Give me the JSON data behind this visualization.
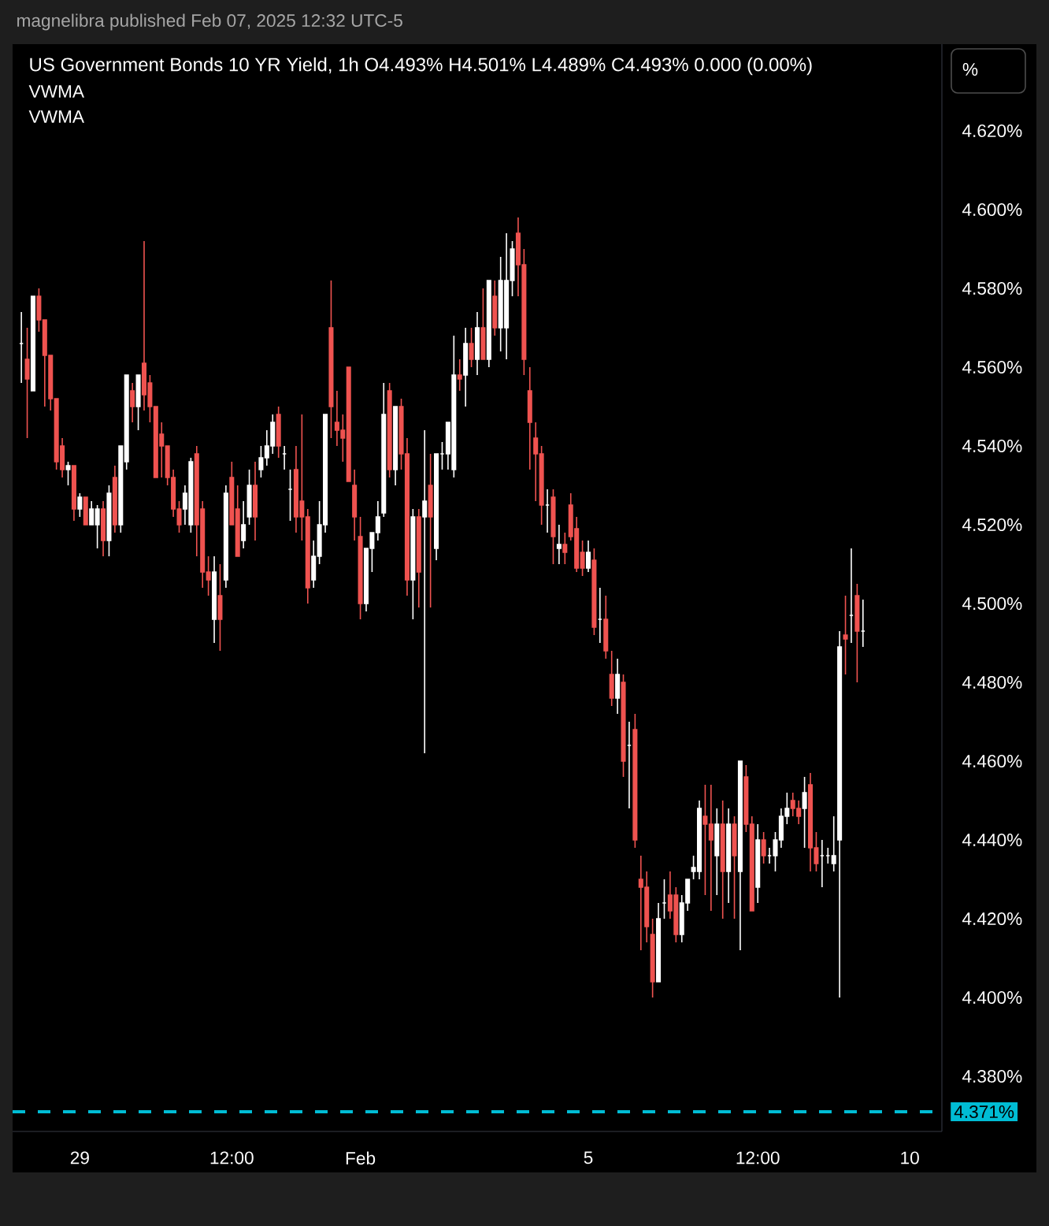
{
  "chart_data": {
    "type": "candlestick",
    "title": "US Government Bonds 10 YR Yield, 1h  O4.493%  H4.501%  L4.489%  C4.493%  0.000 (0.00%)",
    "annotations": [
      "magnelibra published Feb 07, 2025 12:32 UTC-5",
      "VWMA",
      "VWMA",
      "%"
    ],
    "categories": [
      null,
      null,
      null,
      null,
      null,
      null,
      null,
      null,
      null,
      null,
      "29",
      null,
      null,
      null,
      null,
      null,
      null,
      null,
      null,
      null,
      null,
      null,
      null,
      null,
      null,
      null,
      null,
      null,
      null,
      null,
      null,
      null,
      null,
      null,
      null,
      null,
      "12:00",
      null,
      null,
      null,
      null,
      null,
      null,
      null,
      null,
      null,
      null,
      null,
      null,
      null,
      null,
      null,
      null,
      null,
      null,
      null,
      null,
      null,
      "Feb",
      null,
      null,
      null,
      null,
      null,
      null,
      null,
      null,
      null,
      null,
      null,
      null,
      null,
      null,
      null,
      null,
      null,
      null,
      null,
      null,
      null,
      null,
      null,
      null,
      null,
      null,
      null,
      null,
      null,
      null,
      null,
      null,
      null,
      null,
      null,
      null,
      null,
      null,
      "5",
      null,
      null,
      null,
      null,
      null,
      null,
      null,
      null,
      null,
      null,
      null,
      null,
      null,
      null,
      null,
      null,
      null,
      null,
      null,
      null,
      null,
      null,
      null,
      null,
      null,
      null,
      null,
      null,
      "12:00",
      null,
      null,
      null,
      null,
      null,
      null,
      null,
      null,
      null,
      null,
      null,
      null,
      null,
      null,
      null,
      null,
      null,
      null,
      null,
      null,
      null,
      null,
      null,
      null,
      null,
      "10"
    ],
    "ohlc": [
      [
        4.566,
        4.574,
        4.556,
        4.566
      ],
      [
        4.562,
        4.57,
        4.542,
        4.557
      ],
      [
        4.554,
        4.578,
        4.554,
        4.578
      ],
      [
        4.578,
        4.58,
        4.569,
        4.572
      ],
      [
        4.572,
        4.572,
        4.55,
        4.563
      ],
      [
        4.563,
        4.563,
        4.549,
        4.552
      ],
      [
        4.552,
        4.552,
        4.534,
        4.536
      ],
      [
        4.54,
        4.542,
        4.532,
        4.534
      ],
      [
        4.534,
        4.536,
        4.53,
        4.535
      ],
      [
        4.535,
        4.535,
        4.521,
        4.524
      ],
      [
        4.524,
        4.528,
        4.522,
        4.527
      ],
      [
        4.527,
        4.527,
        4.52,
        4.52
      ],
      [
        4.52,
        4.526,
        4.52,
        4.524
      ],
      [
        4.52,
        4.525,
        4.514,
        4.524
      ],
      [
        4.524,
        4.526,
        4.512,
        4.516
      ],
      [
        4.516,
        4.53,
        4.512,
        4.528
      ],
      [
        4.532,
        4.535,
        4.518,
        4.52
      ],
      [
        4.52,
        4.54,
        4.518,
        4.54
      ],
      [
        4.536,
        4.558,
        4.534,
        4.558
      ],
      [
        4.554,
        4.556,
        4.546,
        4.55
      ],
      [
        4.55,
        4.558,
        4.544,
        4.558
      ],
      [
        4.561,
        4.592,
        4.549,
        4.553
      ],
      [
        4.556,
        4.558,
        4.546,
        4.55
      ],
      [
        4.55,
        4.55,
        4.532,
        4.532
      ],
      [
        4.543,
        4.546,
        4.532,
        4.54
      ],
      [
        4.54,
        4.54,
        4.53,
        4.532
      ],
      [
        4.532,
        4.534,
        4.522,
        4.524
      ],
      [
        4.524,
        4.526,
        4.518,
        4.52
      ],
      [
        4.524,
        4.53,
        4.52,
        4.528
      ],
      [
        4.52,
        4.537,
        4.518,
        4.536
      ],
      [
        4.538,
        4.54,
        4.512,
        4.52
      ],
      [
        4.524,
        4.526,
        4.504,
        4.508
      ],
      [
        4.508,
        4.512,
        4.502,
        4.506
      ],
      [
        4.496,
        4.512,
        4.49,
        4.508
      ],
      [
        4.502,
        4.51,
        4.488,
        4.496
      ],
      [
        4.506,
        4.53,
        4.504,
        4.528
      ],
      [
        4.532,
        4.536,
        4.52,
        4.52
      ],
      [
        4.524,
        4.53,
        4.512,
        4.512
      ],
      [
        4.516,
        4.526,
        4.514,
        4.52
      ],
      [
        4.522,
        4.534,
        4.52,
        4.53
      ],
      [
        4.53,
        4.536,
        4.516,
        4.522
      ],
      [
        4.534,
        4.54,
        4.532,
        4.537
      ],
      [
        4.537,
        4.544,
        4.535,
        4.54
      ],
      [
        4.54,
        4.548,
        4.538,
        4.546
      ],
      [
        4.548,
        4.55,
        4.537,
        4.54
      ],
      [
        4.538,
        4.54,
        4.534,
        4.538
      ],
      [
        4.529,
        4.534,
        4.521,
        4.529
      ],
      [
        4.534,
        4.54,
        4.518,
        4.522
      ],
      [
        4.526,
        4.548,
        4.516,
        4.522
      ],
      [
        4.522,
        4.524,
        4.5,
        4.504
      ],
      [
        4.506,
        4.516,
        4.504,
        4.512
      ],
      [
        4.512,
        4.526,
        4.51,
        4.52
      ],
      [
        4.52,
        4.548,
        4.518,
        4.548
      ],
      [
        4.57,
        4.582,
        4.542,
        4.55
      ],
      [
        4.546,
        4.554,
        4.54,
        4.544
      ],
      [
        4.544,
        4.548,
        4.536,
        4.542
      ],
      [
        4.56,
        4.56,
        4.531,
        4.531
      ],
      [
        4.53,
        4.534,
        4.516,
        4.522
      ],
      [
        4.517,
        4.522,
        4.496,
        4.5
      ],
      [
        4.5,
        4.514,
        4.498,
        4.514
      ],
      [
        4.514,
        4.518,
        4.508,
        4.518
      ],
      [
        4.518,
        4.526,
        4.516,
        4.522
      ],
      [
        4.523,
        4.556,
        4.522,
        4.548
      ],
      [
        4.554,
        4.556,
        4.532,
        4.534
      ],
      [
        4.534,
        4.55,
        4.53,
        4.55
      ],
      [
        4.55,
        4.552,
        4.534,
        4.538
      ],
      [
        4.538,
        4.542,
        4.502,
        4.506
      ],
      [
        4.506,
        4.524,
        4.496,
        4.522
      ],
      [
        4.522,
        4.524,
        4.499,
        4.508
      ],
      [
        4.522,
        4.544,
        4.462,
        4.526
      ],
      [
        4.53,
        4.538,
        4.499,
        4.522
      ],
      [
        4.514,
        4.538,
        4.511,
        4.538
      ],
      [
        4.538,
        4.541,
        4.534,
        4.538
      ],
      [
        4.538,
        4.546,
        4.534,
        4.546
      ],
      [
        4.534,
        4.568,
        4.532,
        4.558
      ],
      [
        4.558,
        4.562,
        4.554,
        4.557
      ],
      [
        4.558,
        4.57,
        4.55,
        4.566
      ],
      [
        4.566,
        4.57,
        4.56,
        4.562
      ],
      [
        4.562,
        4.574,
        4.558,
        4.57
      ],
      [
        4.57,
        4.58,
        4.562,
        4.562
      ],
      [
        4.562,
        4.582,
        4.56,
        4.582
      ],
      [
        4.578,
        4.582,
        4.568,
        4.57
      ],
      [
        4.57,
        4.588,
        4.564,
        4.582
      ],
      [
        4.57,
        4.594,
        4.562,
        4.582
      ],
      [
        4.582,
        4.592,
        4.578,
        4.59
      ],
      [
        4.594,
        4.598,
        4.578,
        4.586
      ],
      [
        4.586,
        4.59,
        4.558,
        4.562
      ],
      [
        4.554,
        4.56,
        4.534,
        4.546
      ],
      [
        4.542,
        4.546,
        4.526,
        4.538
      ],
      [
        4.538,
        4.54,
        4.52,
        4.525
      ],
      [
        4.525,
        4.529,
        4.518,
        4.525
      ],
      [
        4.527,
        4.529,
        4.51,
        4.517
      ],
      [
        4.514,
        4.52,
        4.51,
        4.515
      ],
      [
        4.515,
        4.518,
        4.51,
        4.513
      ],
      [
        4.525,
        4.528,
        4.516,
        4.517
      ],
      [
        4.519,
        4.522,
        4.508,
        4.509
      ],
      [
        4.513,
        4.516,
        4.507,
        4.509
      ],
      [
        4.509,
        4.516,
        4.508,
        4.513
      ],
      [
        4.511,
        4.514,
        4.492,
        4.494
      ],
      [
        4.496,
        4.504,
        4.49,
        4.496
      ],
      [
        4.496,
        4.502,
        4.486,
        4.488
      ],
      [
        4.482,
        4.488,
        4.474,
        4.476
      ],
      [
        4.476,
        4.486,
        4.472,
        4.482
      ],
      [
        4.48,
        4.482,
        4.456,
        4.46
      ],
      [
        4.464,
        4.47,
        4.448,
        4.464
      ],
      [
        4.468,
        4.472,
        4.438,
        4.44
      ],
      [
        4.43,
        4.436,
        4.412,
        4.428
      ],
      [
        4.428,
        4.432,
        4.414,
        4.418
      ],
      [
        4.416,
        4.42,
        4.4,
        4.404
      ],
      [
        4.404,
        4.424,
        4.404,
        4.42
      ],
      [
        4.424,
        4.43,
        4.42,
        4.424
      ],
      [
        4.426,
        4.432,
        4.42,
        4.422
      ],
      [
        4.426,
        4.428,
        4.414,
        4.416
      ],
      [
        4.416,
        4.426,
        4.414,
        4.424
      ],
      [
        4.424,
        4.43,
        4.422,
        4.43
      ],
      [
        4.432,
        4.436,
        4.43,
        4.433
      ],
      [
        4.432,
        4.45,
        4.43,
        4.448
      ],
      [
        4.446,
        4.454,
        4.426,
        4.444
      ],
      [
        4.444,
        4.454,
        4.422,
        4.44
      ],
      [
        4.436,
        4.448,
        4.426,
        4.444
      ],
      [
        4.444,
        4.45,
        4.42,
        4.432
      ],
      [
        4.432,
        4.448,
        4.424,
        4.444
      ],
      [
        4.444,
        4.446,
        4.42,
        4.436
      ],
      [
        4.432,
        4.46,
        4.412,
        4.46
      ],
      [
        4.456,
        4.459,
        4.442,
        4.444
      ],
      [
        4.444,
        4.446,
        4.422,
        4.422
      ],
      [
        4.428,
        4.444,
        4.424,
        4.44
      ],
      [
        4.44,
        4.442,
        4.434,
        4.436
      ],
      [
        4.436,
        4.438,
        4.434,
        4.436
      ],
      [
        4.436,
        4.442,
        4.432,
        4.44
      ],
      [
        4.44,
        4.448,
        4.438,
        4.446
      ],
      [
        4.446,
        4.452,
        4.444,
        4.448
      ],
      [
        4.45,
        4.452,
        4.446,
        4.448
      ],
      [
        4.448,
        4.45,
        4.444,
        4.446
      ],
      [
        4.448,
        4.456,
        4.438,
        4.452
      ],
      [
        4.454,
        4.457,
        4.432,
        4.438
      ],
      [
        4.438,
        4.442,
        4.432,
        4.434
      ],
      [
        4.436,
        4.44,
        4.428,
        4.436
      ],
      [
        4.436,
        4.438,
        4.434,
        4.436
      ],
      [
        4.434,
        4.446,
        4.432,
        4.436
      ],
      [
        4.44,
        4.493,
        4.4,
        4.489
      ],
      [
        4.492,
        4.502,
        4.482,
        4.491
      ],
      [
        4.497,
        4.514,
        4.49,
        4.497
      ],
      [
        4.502,
        4.505,
        4.48,
        4.493
      ],
      [
        4.493,
        4.501,
        4.489,
        4.493
      ],
      null,
      null,
      null,
      null,
      null,
      null,
      null,
      null
    ],
    "colors": [
      "#ffffff",
      "#ef5350",
      "#ffffff",
      "#ef5350",
      "#ef5350",
      "#ef5350",
      "#ef5350",
      "#ef5350",
      "#ffffff",
      "#ef5350",
      "#ffffff",
      "#ef5350",
      "#ffffff",
      "#ffffff",
      "#ef5350",
      "#ffffff",
      "#ef5350",
      "#ffffff",
      "#ffffff",
      "#ef5350",
      "#ffffff",
      "#ef5350",
      "#ef5350",
      "#ef5350",
      "#ef5350",
      "#ef5350",
      "#ef5350",
      "#ef5350",
      "#ffffff",
      "#ffffff",
      "#ef5350",
      "#ef5350",
      "#ef5350",
      "#ffffff",
      "#ef5350",
      "#ffffff",
      "#ef5350",
      "#ef5350",
      "#ffffff",
      "#ffffff",
      "#ef5350",
      "#ffffff",
      "#ffffff",
      "#ffffff",
      "#ef5350",
      "#ffffff",
      "#ffffff",
      "#ef5350",
      "#ef5350",
      "#ef5350",
      "#ffffff",
      "#ffffff",
      "#ffffff",
      "#ef5350",
      "#ef5350",
      "#ef5350",
      "#ef5350",
      "#ef5350",
      "#ef5350",
      "#ffffff",
      "#ffffff",
      "#ffffff",
      "#ffffff",
      "#ef5350",
      "#ffffff",
      "#ef5350",
      "#ef5350",
      "#ffffff",
      "#ef5350",
      "#ffffff",
      "#ef5350",
      "#ffffff",
      "#ffffff",
      "#ffffff",
      "#ffffff",
      "#ef5350",
      "#ffffff",
      "#ef5350",
      "#ffffff",
      "#ef5350",
      "#ffffff",
      "#ef5350",
      "#ffffff",
      "#ffffff",
      "#ffffff",
      "#ef5350",
      "#ef5350",
      "#ef5350",
      "#ef5350",
      "#ef5350",
      "#ffffff",
      "#ef5350",
      "#ffffff",
      "#ef5350",
      "#ef5350",
      "#ef5350",
      "#ef5350",
      "#ffffff",
      "#ef5350",
      "#ffffff",
      "#ef5350",
      "#ef5350",
      "#ffffff",
      "#ef5350",
      "#ffffff",
      "#ef5350",
      "#ef5350",
      "#ef5350",
      "#ef5350",
      "#ffffff",
      "#ffffff",
      "#ef5350",
      "#ef5350",
      "#ffffff",
      "#ffffff",
      "#ffffff",
      "#ffffff",
      "#ef5350",
      "#ef5350",
      "#ffffff",
      "#ef5350",
      "#ffffff",
      "#ef5350",
      "#ffffff",
      "#ef5350",
      "#ef5350",
      "#ffffff",
      "#ef5350",
      "#ffffff",
      "#ffffff",
      "#ffffff",
      "#ffffff",
      "#ef5350",
      "#ef5350",
      "#ffffff",
      "#ef5350",
      "#ef5350",
      "#ffffff",
      "#ffffff",
      "#ffffff",
      "#ffffff",
      "#ef5350",
      "#ffffff",
      "#ef5350",
      "#ffffff",
      null,
      null,
      null,
      null,
      null,
      null,
      null,
      null
    ],
    "ylim": [
      4.366,
      4.642
    ],
    "yticks": [
      {
        "value": 4.38,
        "label": "4.380%"
      },
      {
        "value": 4.4,
        "label": "4.400%"
      },
      {
        "value": 4.42,
        "label": "4.420%"
      },
      {
        "value": 4.44,
        "label": "4.440%"
      },
      {
        "value": 4.46,
        "label": "4.460%"
      },
      {
        "value": 4.48,
        "label": "4.480%"
      },
      {
        "value": 4.5,
        "label": "4.500%"
      },
      {
        "value": 4.52,
        "label": "4.520%"
      },
      {
        "value": 4.54,
        "label": "4.540%"
      },
      {
        "value": 4.56,
        "label": "4.560%"
      },
      {
        "value": 4.58,
        "label": "4.580%"
      },
      {
        "value": 4.6,
        "label": "4.600%"
      },
      {
        "value": 4.62,
        "label": "4.620%"
      }
    ],
    "ref_lines": [
      {
        "axis": "y",
        "value": 4.371,
        "label": "4.371%",
        "color": "#00bcd4",
        "line_style": "dashed"
      }
    ]
  }
}
